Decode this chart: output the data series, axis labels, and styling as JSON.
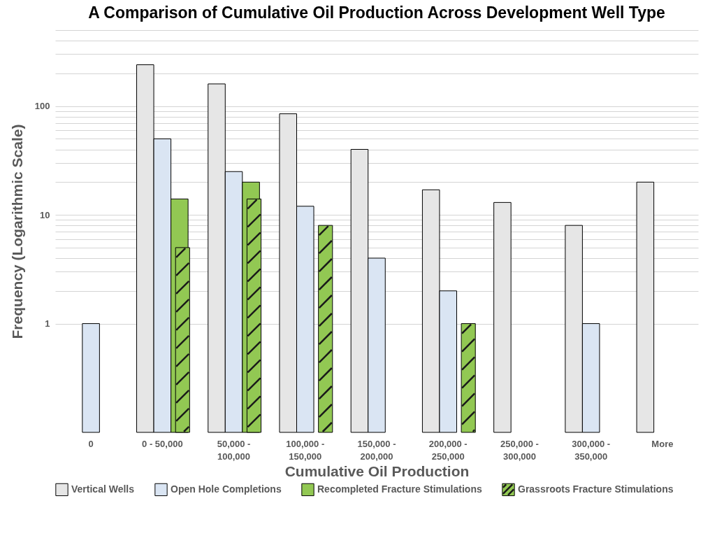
{
  "chart_data": {
    "type": "bar",
    "title": "A Comparison of Cumulative Oil Production Across Development Well Type",
    "xlabel": "Cumulative Oil Production",
    "ylabel": "Frequency (Logarithmic Scale)",
    "categories": [
      "0",
      "0 - 50,000",
      "50,000 - 100,000",
      "100,000 - 150,000",
      "150,000 - 200,000",
      "200,000 - 250,000",
      "250,000 - 300,000",
      "300,000 - 350,000",
      "More"
    ],
    "series": [
      {
        "name": "Vertical Wells",
        "color": "#e6e6e6",
        "values": [
          null,
          240,
          160,
          85,
          40,
          17,
          13,
          8,
          20
        ]
      },
      {
        "name": "Open Hole Completions",
        "color": "#dae5f3",
        "values": [
          1,
          50,
          25,
          12,
          4,
          2,
          null,
          1,
          null
        ]
      },
      {
        "name": "Recompleted Fracture Stimulations",
        "color": "#92c853",
        "values": [
          null,
          14,
          20,
          null,
          null,
          null,
          null,
          null,
          null
        ]
      },
      {
        "name": "Grassroots Fracture Stimulations",
        "color": "#92c853",
        "values": [
          null,
          5,
          14,
          8,
          null,
          1,
          null,
          null,
          null
        ]
      }
    ],
    "log": "y",
    "ylim": [
      0.1,
      500
    ],
    "yticks": [
      1,
      {
        "value": 2,
        "label": null
      },
      {
        "value": 3,
        "label": null
      },
      {
        "value": 4,
        "label": null
      },
      {
        "value": 5,
        "label": null
      },
      {
        "value": 6,
        "label": null
      },
      {
        "value": 7,
        "label": null
      },
      {
        "value": 8,
        "label": null
      },
      {
        "value": 9,
        "label": null
      },
      10,
      {
        "value": 20,
        "label": null
      },
      {
        "value": 30,
        "label": null
      },
      {
        "value": 40,
        "label": null
      },
      {
        "value": 50,
        "label": null
      },
      {
        "value": 60,
        "label": null
      },
      {
        "value": 70,
        "label": null
      },
      {
        "value": 80,
        "label": null
      },
      {
        "value": 90,
        "label": null
      },
      100,
      {
        "value": 200,
        "label": null
      },
      {
        "value": 300,
        "label": null
      },
      {
        "value": 400,
        "label": null
      },
      {
        "value": 500,
        "label": null
      }
    ],
    "grid": "y",
    "legend": "bottom"
  }
}
